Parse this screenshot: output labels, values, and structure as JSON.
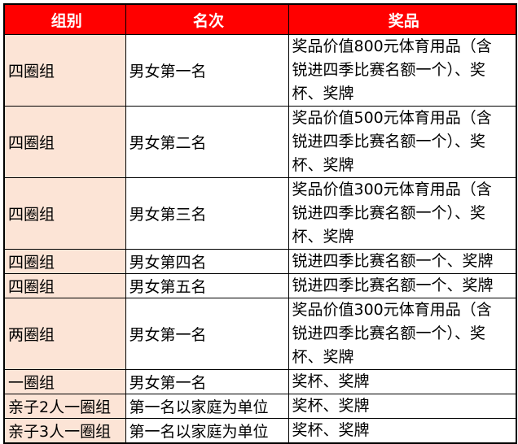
{
  "colors": {
    "header_bg": "#ff0000",
    "header_text": "#ffffff",
    "group_col_bg": "#fce4d6"
  },
  "headers": [
    "组别",
    "名次",
    "奖品"
  ],
  "rows": [
    {
      "group": "四圈组",
      "rank": "男女第一名",
      "prize_lines": [
        "奖品价值800元体育用品（含",
        "锐进四季比赛名额一个）、奖",
        "杯、奖牌"
      ]
    },
    {
      "group": "四圈组",
      "rank": "男女第二名",
      "prize_lines": [
        "奖品价值500元体育用品（含",
        "锐进四季比赛名额一个）、奖",
        "杯、奖牌"
      ]
    },
    {
      "group": "四圈组",
      "rank": "男女第三名",
      "prize_lines": [
        "奖品价值300元体育用品（含",
        "锐进四季比赛名额一个）、奖",
        "杯、奖牌"
      ]
    },
    {
      "group": "四圈组",
      "rank": "男女第四名",
      "prize_lines": [
        "锐进四季比赛名额一个、奖牌"
      ]
    },
    {
      "group": "四圈组",
      "rank": "男女第五名",
      "prize_lines": [
        "锐进四季比赛名额一个、奖牌"
      ]
    },
    {
      "group": "两圈组",
      "rank": "男女第一名",
      "prize_lines": [
        "奖品价值300元体育用品（含",
        "锐进四季比赛名额一个）、奖",
        "杯、奖牌"
      ]
    },
    {
      "group": "一圈组",
      "rank": "男女第一名",
      "prize_lines": [
        "奖杯、奖牌"
      ]
    },
    {
      "group": "亲子2人一圈组",
      "rank": "第一名以家庭为单位",
      "prize_lines": [
        "奖杯、奖牌"
      ]
    },
    {
      "group": "亲子3人一圈组",
      "rank": "第一名以家庭为单位",
      "prize_lines": [
        "奖杯、奖牌"
      ]
    }
  ]
}
